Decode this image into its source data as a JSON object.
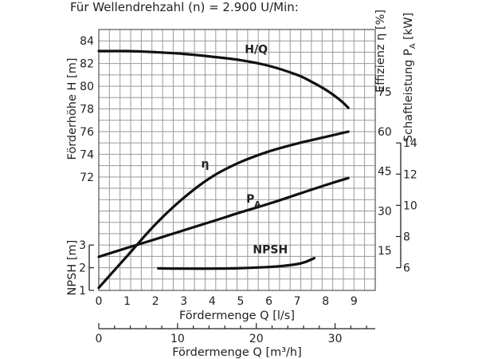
{
  "header": "Für Wellendrehzahl (n) = 2.900 U/Min:",
  "chart_data": {
    "type": "line",
    "grid": true,
    "x_axes": {
      "flow_ls": {
        "label": "Fördermenge Q [l/s]",
        "range": [
          0,
          9.75
        ],
        "ticks": [
          0,
          1,
          2,
          3,
          4,
          5,
          6,
          7,
          8,
          9
        ]
      },
      "flow_m3h": {
        "label": "Fördermenge Q [m³/h]",
        "range": [
          0,
          35.1
        ],
        "ticks": [
          0,
          10,
          20,
          30
        ]
      }
    },
    "y_axes": {
      "head": {
        "label": "Förderhöhe H [m]",
        "range": [
          71,
          85
        ],
        "ticks": [
          72,
          74,
          76,
          78,
          80,
          82,
          84
        ]
      },
      "npsh": {
        "label": "NPSH [m]",
        "range": [
          1,
          3
        ],
        "ticks": [
          1,
          2,
          3
        ]
      },
      "efficiency": {
        "label": "Effizienz η [%]",
        "range": [
          0,
          90
        ],
        "ticks": [
          15,
          30,
          45,
          60,
          75
        ]
      },
      "power": {
        "label_main": "Schaftleistung P",
        "label_sub": "A",
        "label_unit": " [kW]",
        "range": [
          6,
          14
        ],
        "ticks": [
          6,
          8,
          10,
          12,
          14
        ]
      }
    },
    "series": [
      {
        "name": "H/Q",
        "axis": "head",
        "x": [
          0,
          1,
          2,
          3,
          4,
          5,
          6,
          7,
          7.5,
          8,
          8.5,
          8.8
        ],
        "y": [
          83.1,
          83.1,
          83.0,
          82.85,
          82.6,
          82.3,
          81.8,
          81.0,
          80.4,
          79.7,
          78.8,
          78.1
        ]
      },
      {
        "name": "η",
        "axis": "efficiency",
        "x": [
          0,
          1,
          2,
          3,
          4,
          5,
          6,
          7,
          8,
          8.8
        ],
        "y": [
          1,
          13,
          25,
          35,
          43,
          48.5,
          52.5,
          55.5,
          58,
          60
        ]
      },
      {
        "name_main": "P",
        "name_sub": "A",
        "axis": "power",
        "x": [
          0,
          1,
          2,
          3,
          4,
          5,
          6,
          7,
          8,
          8.8
        ],
        "y": [
          6.7,
          7.27,
          7.83,
          8.4,
          8.97,
          9.55,
          10.1,
          10.7,
          11.3,
          11.75
        ]
      },
      {
        "name": "NPSH",
        "axis": "npsh",
        "x": [
          2.1,
          3,
          4,
          5,
          6,
          6.5,
          7,
          7.3,
          7.6
        ],
        "y": [
          1.97,
          1.96,
          1.96,
          1.98,
          2.03,
          2.08,
          2.16,
          2.26,
          2.42
        ]
      }
    ]
  }
}
